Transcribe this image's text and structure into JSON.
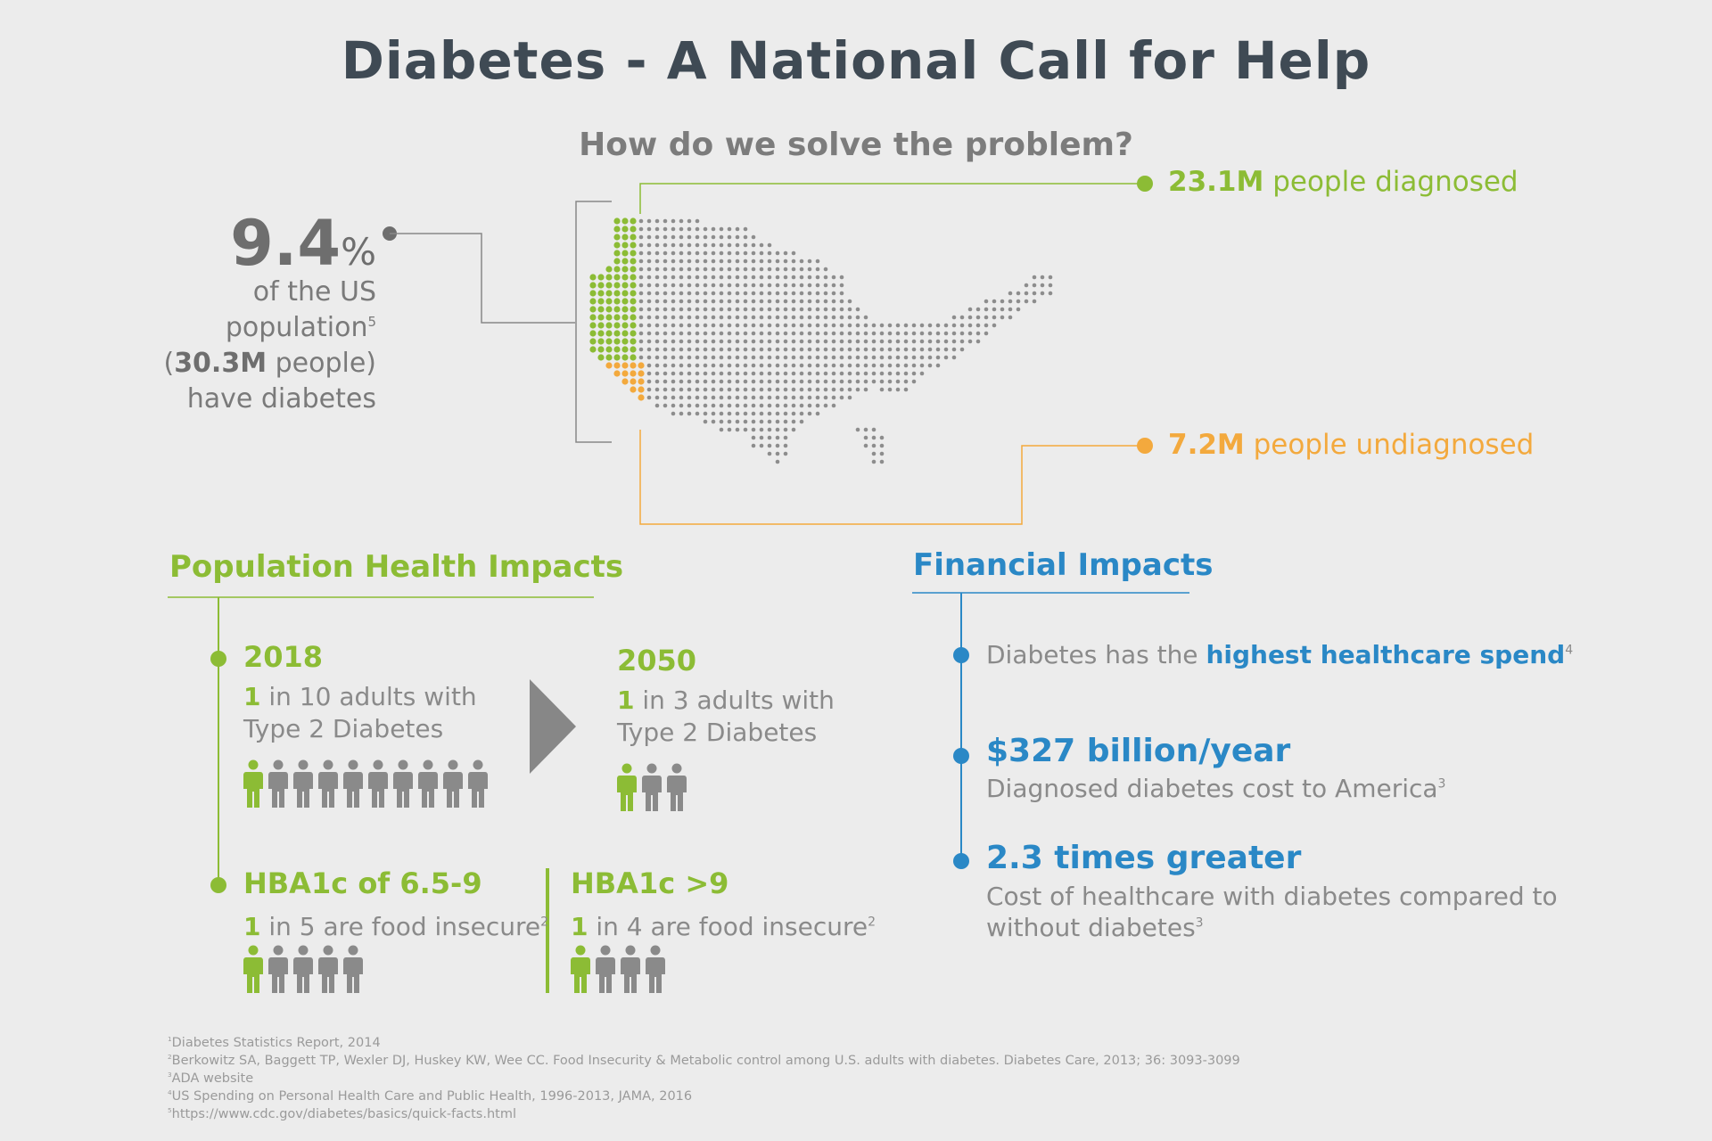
{
  "title": "Diabetes - A National Call for Help",
  "subtitle": "How do we solve the problem?",
  "colors": {
    "green": "#8cbc35",
    "orange": "#f3a93d",
    "blue": "#2a88c6",
    "gray": "#8a8a8a",
    "title": "#3f4a54"
  },
  "population": {
    "value": "9.4",
    "unit": "%",
    "line1": "of the US",
    "line2": "population",
    "line2_note": "5",
    "line3_open": "(",
    "line3_bold": "30.3M",
    "line3_rest": " people)",
    "line4": "have diabetes"
  },
  "map": {
    "icon": "us-map-dots",
    "diagnosed_value": "23.1M",
    "diagnosed_label": " people diagnosed",
    "undiagnosed_value": "7.2M",
    "undiagnosed_label": " people undiagnosed"
  },
  "population_health": {
    "title": "Population Health Impacts",
    "year_a": "2018",
    "stat_a_num": "1",
    "stat_a_line1": " in 10 adults with",
    "stat_a_line2": "Type 2 Diabetes",
    "stat_a_total": 10,
    "stat_a_highlighted": 1,
    "year_b": "2050",
    "stat_b_num": "1",
    "stat_b_line1": " in 3 adults with",
    "stat_b_line2": "Type 2 Diabetes",
    "stat_b_total": 3,
    "stat_b_highlighted": 1,
    "hba_a_title": "HBA1c of 6.5-9",
    "hba_a_num": "1",
    "hba_a_text": " in 5 are food insecure",
    "hba_a_note": "2",
    "hba_a_total": 5,
    "hba_b_title": "HBA1c >9",
    "hba_b_num": "1",
    "hba_b_text": " in 4 are food insecure",
    "hba_b_note": "2",
    "hba_b_total": 4
  },
  "financial": {
    "title": "Financial Impacts",
    "item1_text": "Diabetes has the ",
    "item1_bold": "highest healthcare spend",
    "item1_note": "4",
    "item2_big": "$327 billion/year",
    "item2_desc": "Diagnosed diabetes cost to America",
    "item2_note": "3",
    "item3_big": "2.3 times greater",
    "item3_desc_line1": "Cost of healthcare with diabetes compared to",
    "item3_desc_line2": "without diabetes",
    "item3_note": "3"
  },
  "footnotes": [
    {
      "num": "1",
      "text": "Diabetes Statistics Report, 2014"
    },
    {
      "num": "2",
      "text": "Berkowitz SA, Baggett TP, Wexler DJ, Huskey KW, Wee CC. Food Insecurity & Metabolic control among U.S. adults with diabetes. Diabetes Care, 2013; 36: 3093-3099"
    },
    {
      "num": "3",
      "text": "ADA website"
    },
    {
      "num": "4",
      "text": "US Spending on Personal Health  Care and Public Health, 1996-2013, JAMA, 2016"
    },
    {
      "num": "5",
      "text": "https://www.cdc.gov/diabetes/basics/quick-facts.html"
    }
  ]
}
